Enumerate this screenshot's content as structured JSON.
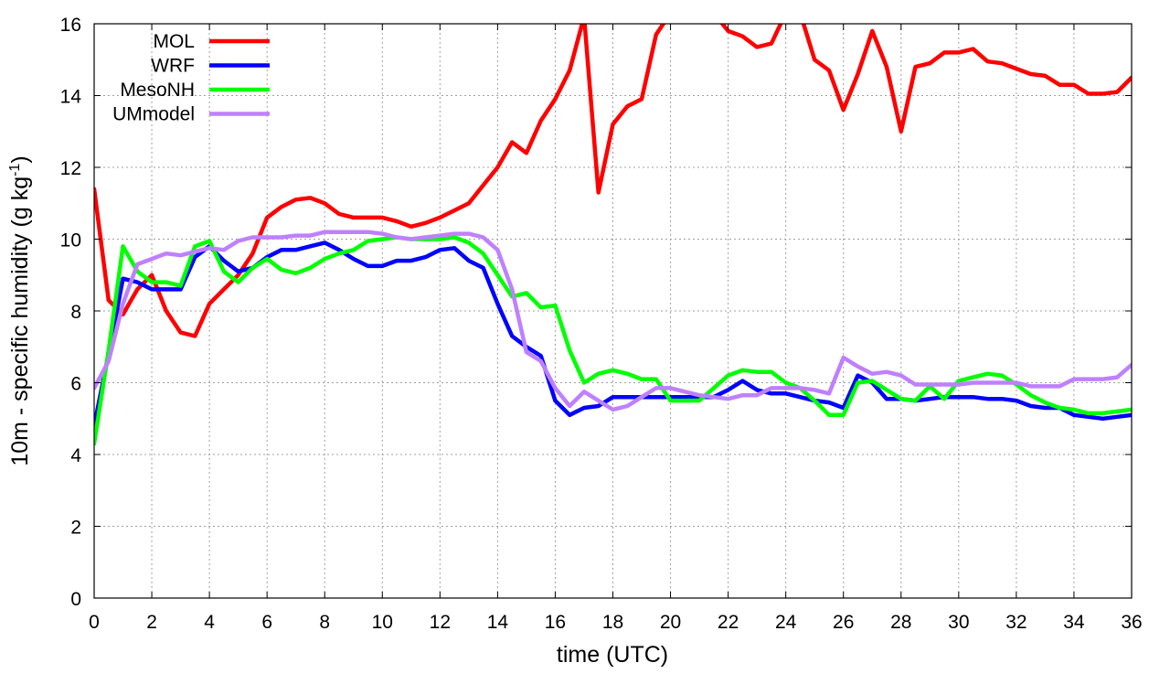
{
  "chart_data": {
    "type": "line",
    "xlabel": "time (UTC)",
    "ylabel_main": "10m - specific humidity (g kg",
    "ylabel_sup": "-1",
    "ylabel_close": ")",
    "xlim": [
      0,
      36
    ],
    "ylim": [
      0,
      16
    ],
    "xticks": [
      0,
      2,
      4,
      6,
      8,
      10,
      12,
      14,
      16,
      18,
      20,
      22,
      24,
      26,
      28,
      30,
      32,
      34,
      36
    ],
    "yticks": [
      0,
      2,
      4,
      6,
      8,
      10,
      12,
      14,
      16
    ],
    "grid": true,
    "legend_position": "top-left",
    "series": [
      {
        "name": "MOL",
        "color": "#ff0000",
        "x": [
          0,
          0.5,
          1,
          1.5,
          2,
          2.5,
          3,
          3.5,
          4,
          4.5,
          5,
          5.5,
          6,
          6.5,
          7,
          7.5,
          8,
          8.5,
          9,
          9.5,
          10,
          10.5,
          11,
          11.5,
          12,
          12.5,
          13,
          13.5,
          14,
          14.5,
          15,
          15.5,
          16,
          16.5,
          17,
          17.5,
          18,
          18.5,
          19,
          19.5,
          20,
          20.5,
          21,
          21.5,
          22,
          22.5,
          23,
          23.5,
          24,
          24.5,
          25,
          25.5,
          26,
          26.5,
          27,
          27.5,
          28,
          28.5,
          29,
          29.5,
          30,
          30.5,
          31,
          31.5,
          32,
          32.5,
          33,
          33.5,
          34,
          34.5,
          35,
          35.5,
          36
        ],
        "values": [
          11.4,
          8.3,
          7.9,
          8.6,
          9.0,
          8.0,
          7.4,
          7.3,
          8.2,
          8.6,
          9.0,
          9.6,
          10.6,
          10.9,
          11.1,
          11.15,
          11.0,
          10.7,
          10.6,
          10.6,
          10.6,
          10.5,
          10.35,
          10.45,
          10.6,
          10.8,
          11.0,
          11.5,
          12.0,
          12.7,
          12.4,
          13.3,
          13.9,
          14.7,
          16.2,
          11.3,
          13.2,
          13.7,
          13.9,
          15.7,
          16.3,
          16.3,
          16.3,
          16.3,
          15.8,
          15.65,
          15.35,
          15.45,
          16.3,
          16.3,
          15.0,
          14.7,
          13.6,
          14.6,
          15.8,
          14.8,
          13.0,
          14.8,
          14.9,
          15.2,
          15.2,
          15.3,
          14.95,
          14.9,
          14.75,
          14.6,
          14.55,
          14.3,
          14.3,
          14.05,
          14.05,
          14.1,
          14.5
        ]
      },
      {
        "name": "WRF",
        "color": "#0000ff",
        "x": [
          0,
          0.5,
          1,
          1.5,
          2,
          2.5,
          3,
          3.5,
          4,
          4.5,
          5,
          5.5,
          6,
          6.5,
          7,
          7.5,
          8,
          8.5,
          9,
          9.5,
          10,
          10.5,
          11,
          11.5,
          12,
          12.5,
          13,
          13.5,
          14,
          14.5,
          15,
          15.5,
          16,
          16.5,
          17,
          17.5,
          18,
          18.5,
          19,
          19.5,
          20,
          20.5,
          21,
          21.5,
          22,
          22.5,
          23,
          23.5,
          24,
          24.5,
          25,
          25.5,
          26,
          26.5,
          27,
          27.5,
          28,
          28.5,
          29,
          29.5,
          30,
          30.5,
          31,
          31.5,
          32,
          32.5,
          33,
          33.5,
          34,
          34.5,
          35,
          35.5,
          36
        ],
        "values": [
          4.8,
          6.8,
          8.9,
          8.8,
          8.6,
          8.6,
          8.6,
          9.5,
          9.8,
          9.4,
          9.1,
          9.2,
          9.5,
          9.7,
          9.7,
          9.8,
          9.9,
          9.7,
          9.45,
          9.25,
          9.25,
          9.4,
          9.4,
          9.5,
          9.7,
          9.75,
          9.4,
          9.2,
          8.2,
          7.3,
          7.0,
          6.75,
          5.5,
          5.1,
          5.3,
          5.35,
          5.6,
          5.6,
          5.6,
          5.6,
          5.6,
          5.6,
          5.6,
          5.6,
          5.8,
          6.05,
          5.8,
          5.7,
          5.7,
          5.6,
          5.5,
          5.45,
          5.3,
          6.2,
          6.0,
          5.55,
          5.55,
          5.5,
          5.55,
          5.6,
          5.6,
          5.6,
          5.55,
          5.55,
          5.5,
          5.35,
          5.3,
          5.3,
          5.1,
          5.05,
          5.0,
          5.05,
          5.1
        ]
      },
      {
        "name": "MesoNH",
        "color": "#00ff00",
        "x": [
          0,
          0.5,
          1,
          1.5,
          2,
          2.5,
          3,
          3.5,
          4,
          4.5,
          5,
          5.5,
          6,
          6.5,
          7,
          7.5,
          8,
          8.5,
          9,
          9.5,
          10,
          10.5,
          11,
          11.5,
          12,
          12.5,
          13,
          13.5,
          14,
          14.5,
          15,
          15.5,
          16,
          16.5,
          17,
          17.5,
          18,
          18.5,
          19,
          19.5,
          20,
          20.5,
          21,
          21.5,
          22,
          22.5,
          23,
          23.5,
          24,
          24.5,
          25,
          25.5,
          26,
          26.5,
          27,
          27.5,
          28,
          28.5,
          29,
          29.5,
          30,
          30.5,
          31,
          31.5,
          32,
          32.5,
          33,
          33.5,
          34,
          34.5,
          35,
          35.5,
          36
        ],
        "values": [
          4.3,
          6.9,
          9.8,
          9.1,
          8.8,
          8.8,
          8.7,
          9.8,
          9.95,
          9.1,
          8.8,
          9.2,
          9.45,
          9.15,
          9.05,
          9.2,
          9.45,
          9.6,
          9.7,
          9.95,
          10.0,
          10.05,
          10.0,
          10.0,
          10.0,
          10.05,
          9.9,
          9.6,
          9.0,
          8.4,
          8.5,
          8.1,
          8.15,
          6.9,
          6.0,
          6.25,
          6.35,
          6.25,
          6.1,
          6.1,
          5.5,
          5.5,
          5.5,
          5.85,
          6.2,
          6.35,
          6.3,
          6.3,
          6.0,
          5.85,
          5.5,
          5.1,
          5.1,
          6.0,
          6.05,
          5.8,
          5.55,
          5.5,
          5.9,
          5.55,
          6.05,
          6.15,
          6.25,
          6.2,
          5.95,
          5.65,
          5.45,
          5.3,
          5.25,
          5.15,
          5.15,
          5.2,
          5.25
        ]
      },
      {
        "name": "UMmodel",
        "color": "#bf80ff",
        "x": [
          0,
          0.5,
          1,
          1.5,
          2,
          2.5,
          3,
          3.5,
          4,
          4.5,
          5,
          5.5,
          6,
          6.5,
          7,
          7.5,
          8,
          8.5,
          9,
          9.5,
          10,
          10.5,
          11,
          11.5,
          12,
          12.5,
          13,
          13.5,
          14,
          14.5,
          15,
          15.5,
          16,
          16.5,
          17,
          17.5,
          18,
          18.5,
          19,
          19.5,
          20,
          20.5,
          21,
          21.5,
          22,
          22.5,
          23,
          23.5,
          24,
          24.5,
          25,
          25.5,
          26,
          26.5,
          27,
          27.5,
          28,
          28.5,
          29,
          29.5,
          30,
          30.5,
          31,
          31.5,
          32,
          32.5,
          33,
          33.5,
          34,
          34.5,
          35,
          35.5,
          36
        ],
        "values": [
          5.85,
          6.6,
          8.2,
          9.3,
          9.45,
          9.6,
          9.55,
          9.65,
          9.75,
          9.7,
          9.95,
          10.05,
          10.05,
          10.05,
          10.1,
          10.1,
          10.2,
          10.2,
          10.2,
          10.2,
          10.15,
          10.05,
          10.0,
          10.05,
          10.1,
          10.15,
          10.15,
          10.05,
          9.7,
          8.6,
          6.85,
          6.6,
          5.85,
          5.35,
          5.75,
          5.5,
          5.25,
          5.35,
          5.6,
          5.85,
          5.85,
          5.75,
          5.65,
          5.6,
          5.55,
          5.65,
          5.65,
          5.85,
          5.85,
          5.85,
          5.8,
          5.7,
          6.7,
          6.45,
          6.25,
          6.3,
          6.2,
          5.95,
          5.95,
          5.95,
          5.95,
          6.0,
          6.0,
          6.0,
          6.0,
          5.9,
          5.9,
          5.9,
          6.1,
          6.1,
          6.1,
          6.15,
          6.5
        ]
      }
    ]
  }
}
